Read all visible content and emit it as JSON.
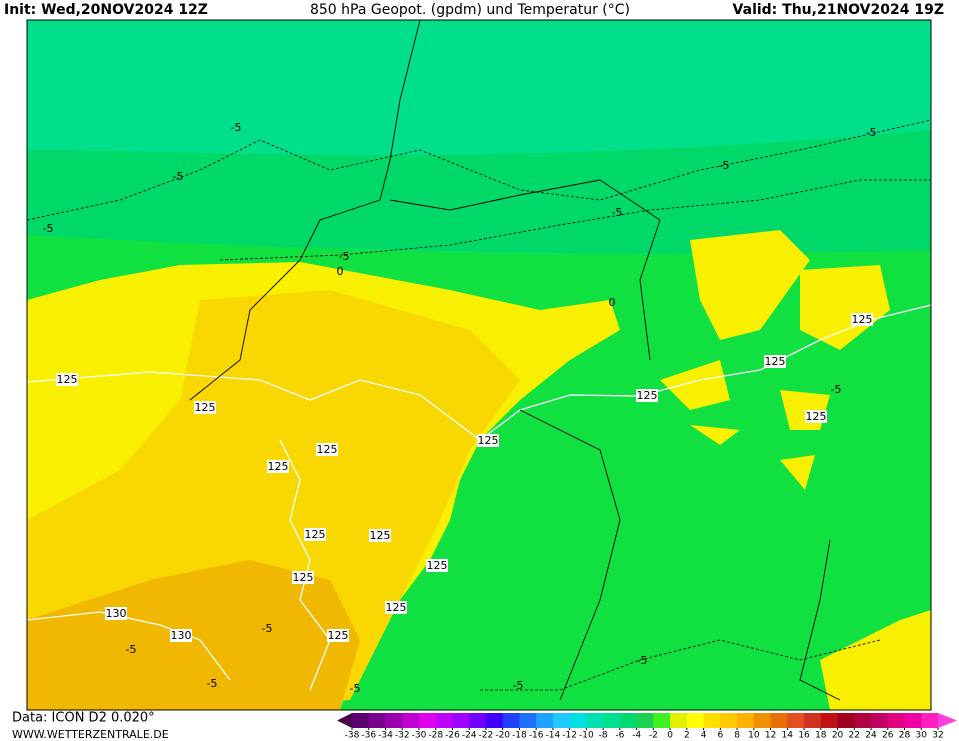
{
  "header": {
    "init": "Init: Wed,20NOV2024 12Z",
    "title": "850 hPa Geopot. (gpdm) und Temperatur (°C)",
    "valid": "Valid: Thu,21NOV2024 19Z"
  },
  "map": {
    "geopotential_labels": [
      "125",
      "125",
      "125",
      "125",
      "125",
      "125",
      "125",
      "125",
      "125",
      "125",
      "125",
      "125",
      "125",
      "125",
      "125",
      "130",
      "130"
    ],
    "temperature_labels": [
      "-5",
      "-5",
      "-5",
      "-5",
      "-5",
      "-5",
      "-5",
      "-5",
      "-5",
      "-5",
      "-5",
      "-5",
      "-5",
      "-5",
      "0",
      "0"
    ]
  },
  "footer": {
    "data": "Data: ICON D2 0.020°",
    "site": "WWW.WETTERZENTRALE.DE"
  },
  "colorbar": {
    "ticks": [
      -38,
      -36,
      -34,
      -32,
      -30,
      -28,
      -26,
      -24,
      -22,
      -20,
      -18,
      -16,
      -14,
      -12,
      -10,
      -8,
      -6,
      -4,
      -2,
      0,
      2,
      4,
      6,
      8,
      10,
      12,
      14,
      16,
      18,
      20,
      22,
      24,
      26,
      28,
      30,
      32
    ],
    "colors": [
      "#4b004b",
      "#5a0070",
      "#7a0090",
      "#9a00b0",
      "#c000d0",
      "#e000f0",
      "#c000ff",
      "#a000ff",
      "#7000ff",
      "#4000ff",
      "#2040ff",
      "#2070ff",
      "#20a0ff",
      "#20c8ff",
      "#00e0e0",
      "#00e0b0",
      "#00e090",
      "#00d870",
      "#20d050",
      "#40f020",
      "#e0f000",
      "#ffff00",
      "#ffe000",
      "#ffc800",
      "#ffb000",
      "#f09000",
      "#e87000",
      "#e05020",
      "#d03020",
      "#c01010",
      "#a00020",
      "#b00040",
      "#c00060",
      "#e00080",
      "#f000a0",
      "#ff20c0",
      "#ff40e0"
    ]
  }
}
